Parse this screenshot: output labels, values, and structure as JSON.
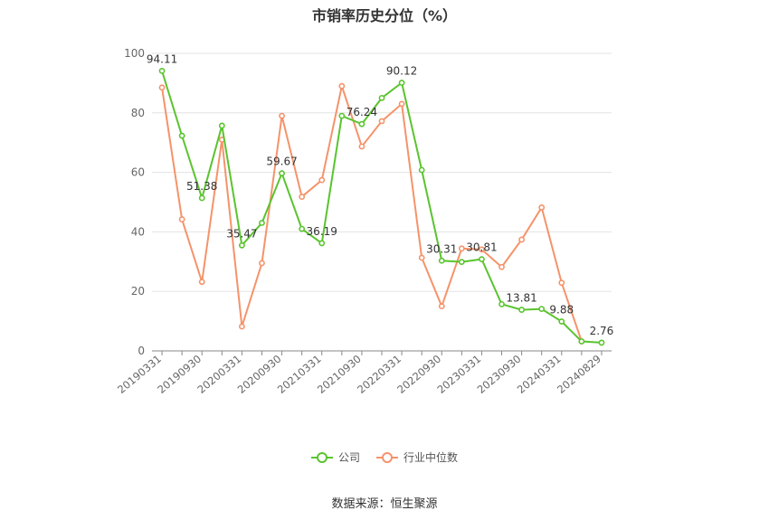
{
  "chart_data": {
    "type": "line",
    "title": "市销率历史分位（%）",
    "ylim": [
      0,
      100
    ],
    "y_ticks": [
      0,
      20,
      40,
      60,
      80,
      100
    ],
    "x_tick_labels": [
      "20190331",
      "20190930",
      "20200331",
      "20200930",
      "20210331",
      "20210930",
      "20220331",
      "20220930",
      "20230331",
      "20230930",
      "20240331",
      "20240829"
    ],
    "grid": "horizontal",
    "legend_position": "bottom",
    "series": [
      {
        "name": "公司",
        "color": "#5ac42e",
        "values": [
          94.11,
          72.3,
          51.38,
          75.7,
          35.47,
          43.0,
          59.67,
          41.0,
          36.19,
          79.0,
          76.24,
          85.0,
          90.12,
          60.8,
          30.31,
          29.9,
          30.81,
          15.7,
          13.81,
          14.1,
          9.88,
          3.2,
          2.76
        ],
        "labels": [
          "94.11",
          "",
          "51.38",
          "",
          "35.47",
          "",
          "59.67",
          "",
          "36.19",
          "",
          "76.24",
          "",
          "90.12",
          "",
          "30.31",
          "",
          "30.81",
          "",
          "13.81",
          "",
          "9.88",
          "",
          "2.76"
        ]
      },
      {
        "name": "行业中位数",
        "color": "#f5936a",
        "values": [
          88.5,
          44.2,
          23.2,
          71.0,
          8.2,
          29.5,
          79.0,
          51.8,
          57.4,
          89.0,
          68.7,
          77.2,
          83.0,
          31.3,
          15.0,
          34.4,
          34.1,
          28.2,
          37.4,
          48.2,
          22.9,
          3.2,
          null
        ]
      }
    ]
  },
  "footer": {
    "source": "数据来源：恒生聚源"
  }
}
